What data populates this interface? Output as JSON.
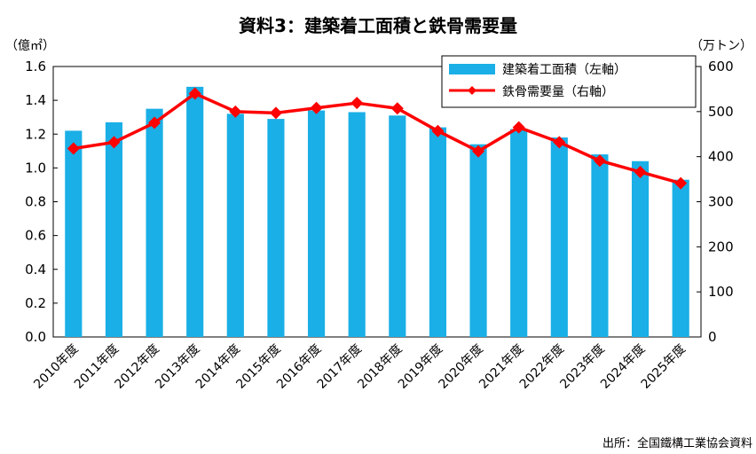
{
  "chart_data": {
    "type": "bar",
    "title": "資料3：建築着工面積と鉄骨需要量",
    "y_left_unit": "（億㎡）",
    "y_right_unit": "（万トン）",
    "ylim_left": [
      0,
      1.6
    ],
    "ylim_right": [
      0,
      600
    ],
    "y_left_ticks": [
      "0.0",
      "0.2",
      "0.4",
      "0.6",
      "0.8",
      "1.0",
      "1.2",
      "1.4",
      "1.6"
    ],
    "y_right_ticks": [
      "0",
      "100",
      "200",
      "300",
      "400",
      "500",
      "600"
    ],
    "categories": [
      "2010年度",
      "2011年度",
      "2012年度",
      "2013年度",
      "2014年度",
      "2015年度",
      "2016年度",
      "2017年度",
      "2018年度",
      "2019年度",
      "2020年度",
      "2021年度",
      "2022年度",
      "2023年度",
      "2024年度",
      "2025年度"
    ],
    "series": [
      {
        "name": "建築着工面積（左軸）",
        "kind": "bar",
        "axis": "left",
        "color": "#1aafe6",
        "values": [
          1.22,
          1.27,
          1.35,
          1.48,
          1.32,
          1.29,
          1.34,
          1.33,
          1.31,
          1.24,
          1.14,
          1.23,
          1.18,
          1.08,
          1.04,
          0.93
        ]
      },
      {
        "name": "鉄骨需要量（右軸）",
        "kind": "line",
        "axis": "right",
        "color": "#ff0000",
        "values": [
          418,
          432,
          475,
          540,
          500,
          497,
          508,
          519,
          507,
          457,
          412,
          465,
          432,
          391,
          366,
          341
        ]
      }
    ],
    "legend_position": "top-right",
    "grid": false,
    "source": "出所：全国鐵構工業協会資料"
  }
}
